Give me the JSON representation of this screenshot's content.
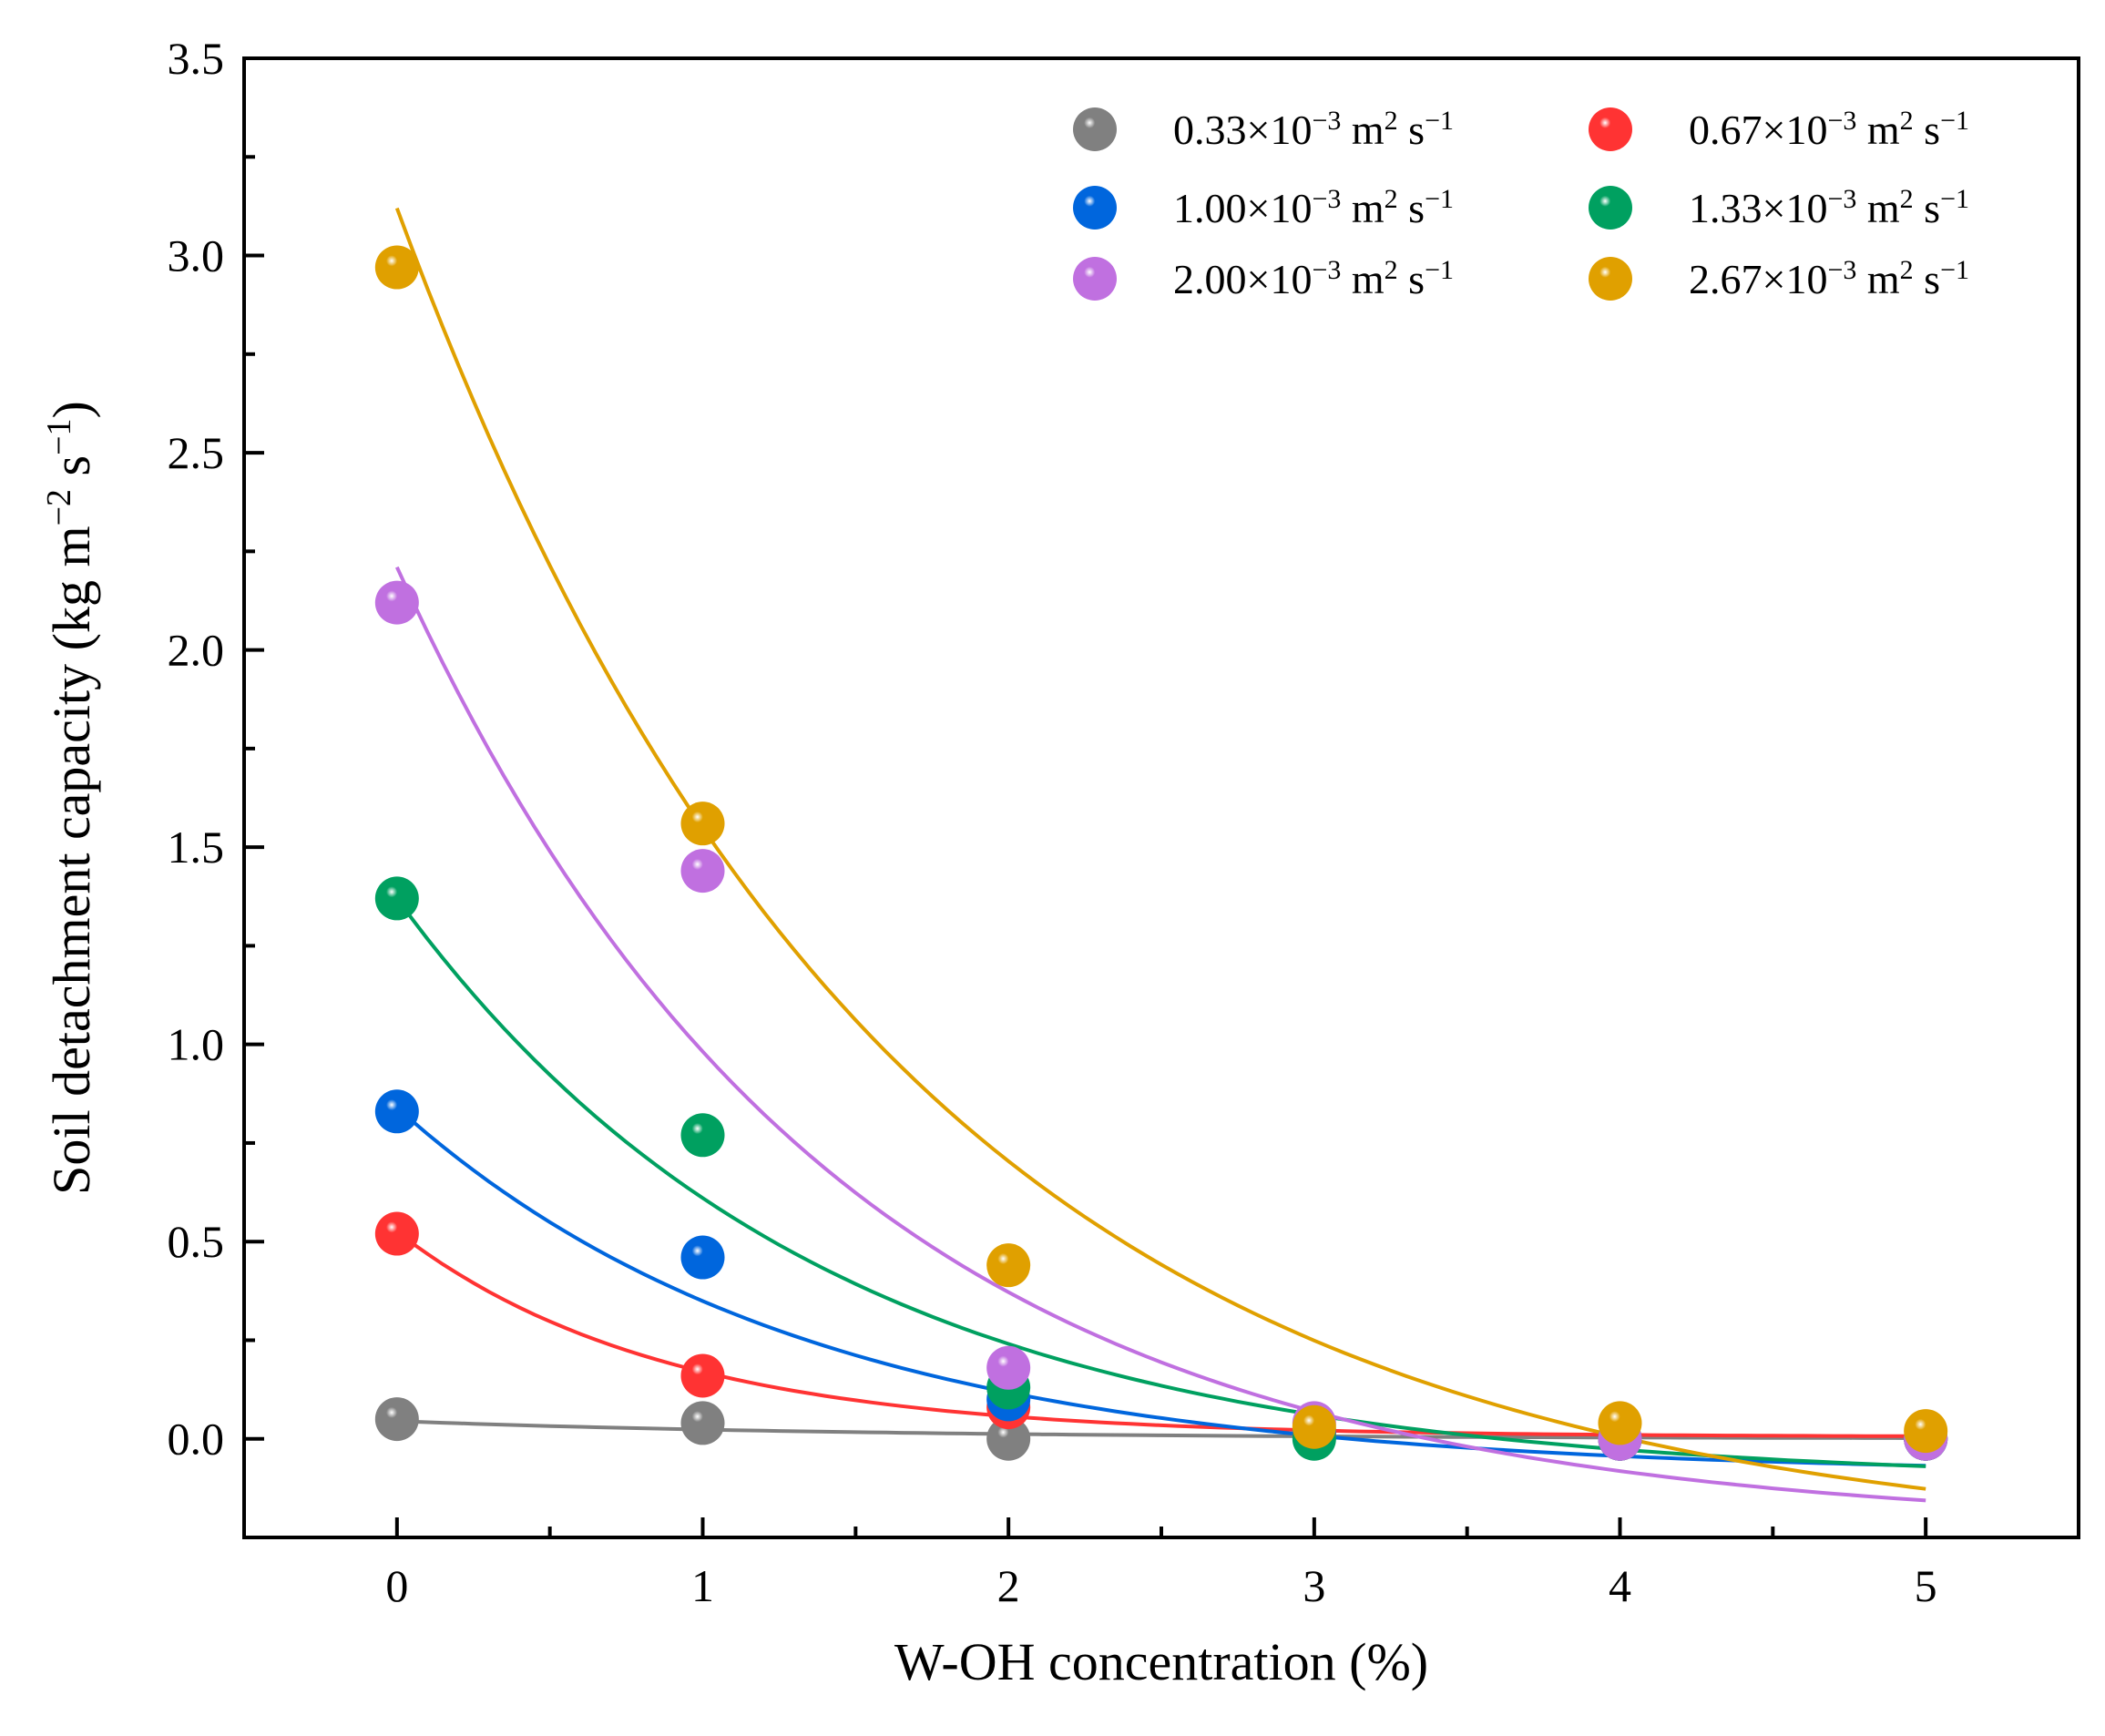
{
  "chart_data": {
    "type": "scatter",
    "xlabel": "W-OH concentration (%)",
    "ylabel": "Soil detachment capacity (kg m−2 s−1)",
    "xlim": [
      -0.5,
      5.5
    ],
    "ylim": [
      -0.25,
      3.5
    ],
    "x_ticks": [
      "0",
      "1",
      "2",
      "3",
      "4",
      "5"
    ],
    "y_ticks": [
      "0.0",
      "0.5",
      "1.0",
      "1.5",
      "2.0",
      "2.5",
      "3.0",
      "3.5"
    ],
    "legend_position": "top-right",
    "legend_unit": "m2 s−1",
    "legend_suffix_html": "m<tspan baseline-shift='super' font-size='30'>2</tspan> s<tspan baseline-shift='super' font-size='30'>−1</tspan>",
    "series": [
      {
        "name": "0.33×10−3 m2 s−1",
        "coef": "0.33",
        "exp": "−3",
        "color": "#808080",
        "x": [
          0,
          1,
          2,
          3,
          4,
          5
        ],
        "y": [
          0.05,
          0.04,
          0.0,
          0.01,
          0.0,
          0.0
        ],
        "fit": {
          "a": 0.045,
          "b": 0.65,
          "c": 0.0
        }
      },
      {
        "name": "0.67×10−3 m2 s−1",
        "coef": "0.67",
        "exp": "−3",
        "color": "#ff3333",
        "x": [
          0,
          1,
          2,
          3,
          4,
          5
        ],
        "y": [
          0.52,
          0.16,
          0.08,
          0.01,
          0.0,
          0.0
        ],
        "fit": {
          "a": 0.52,
          "b": 1.15,
          "c": 0.005
        }
      },
      {
        "name": "1.00×10−3 m2 s−1",
        "coef": "1.00",
        "exp": "−3",
        "color": "#0066dd",
        "x": [
          0,
          1,
          2,
          3,
          4,
          5
        ],
        "y": [
          0.83,
          0.46,
          0.1,
          0.02,
          0.0,
          0.0
        ],
        "fit": {
          "a": 0.93,
          "b": 0.75,
          "c": -0.09
        }
      },
      {
        "name": "1.33×10−3 m2 s−1",
        "coef": "1.33",
        "exp": "−3",
        "color": "#00a060",
        "x": [
          0,
          1,
          2,
          3,
          4,
          5
        ],
        "y": [
          1.37,
          0.77,
          0.13,
          0.0,
          0.0,
          0.0
        ],
        "fit": {
          "a": 1.48,
          "b": 0.72,
          "c": -0.11
        }
      },
      {
        "name": "2.00×10−3 m2 s−1",
        "coef": "2.00",
        "exp": "−3",
        "color": "#c070e0",
        "x": [
          0,
          1,
          2,
          3,
          4,
          5
        ],
        "y": [
          2.12,
          1.44,
          0.18,
          0.04,
          0.0,
          0.0
        ],
        "fit": {
          "a": 2.44,
          "b": 0.7,
          "c": -0.23
        }
      },
      {
        "name": "2.67×10−3 m2 s−1",
        "coef": "2.67",
        "exp": "−3",
        "color": "#e0a000",
        "x": [
          0,
          1,
          2,
          3,
          4,
          5
        ],
        "y": [
          2.97,
          1.56,
          0.44,
          0.03,
          0.04,
          0.02
        ],
        "fit": {
          "a": 3.4,
          "b": 0.62,
          "c": -0.28
        }
      }
    ]
  }
}
